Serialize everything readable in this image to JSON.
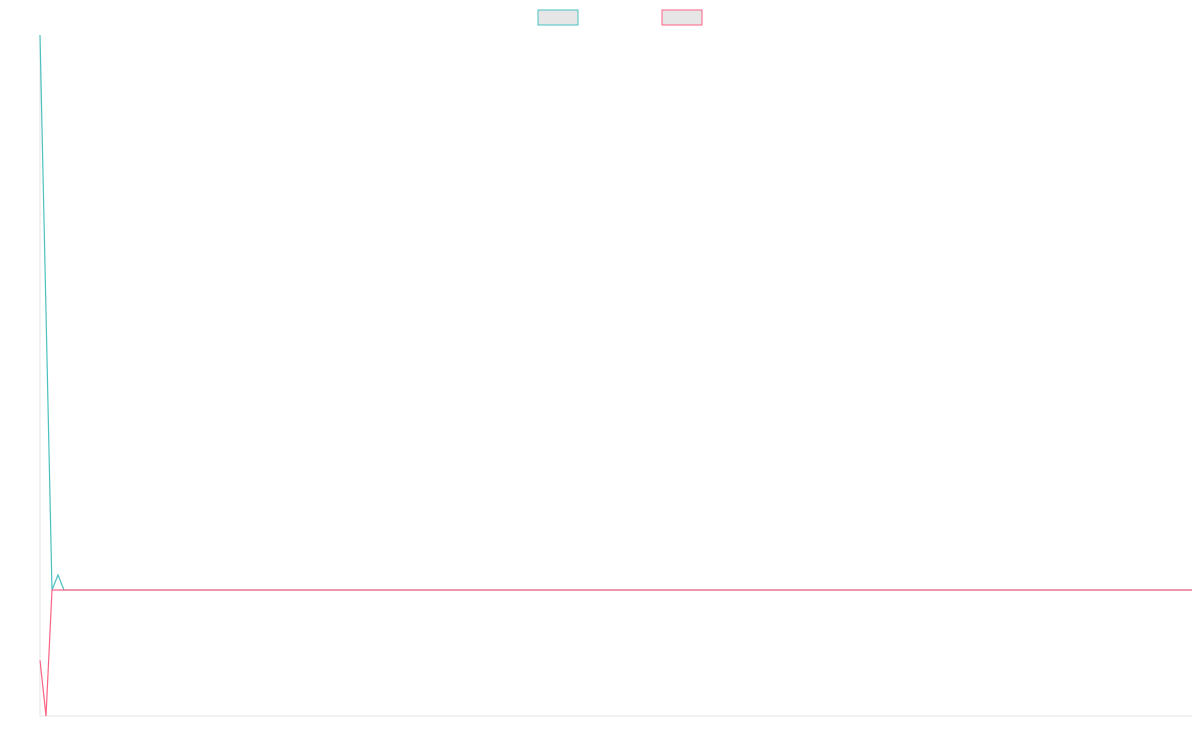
{
  "chart_data": {
    "type": "line",
    "x": [
      0,
      1,
      2,
      3,
      4,
      192
    ],
    "xlim": [
      0,
      192
    ],
    "ylim": [
      0,
      100
    ],
    "series": [
      {
        "color": "#4bc0c0",
        "values": [
          100,
          59.3,
          18.5,
          20.7,
          18.5,
          18.5
        ]
      },
      {
        "color": "#ff6384",
        "values": [
          8.2,
          0,
          18.5,
          18.5,
          18.5,
          18.5
        ]
      }
    ]
  }
}
